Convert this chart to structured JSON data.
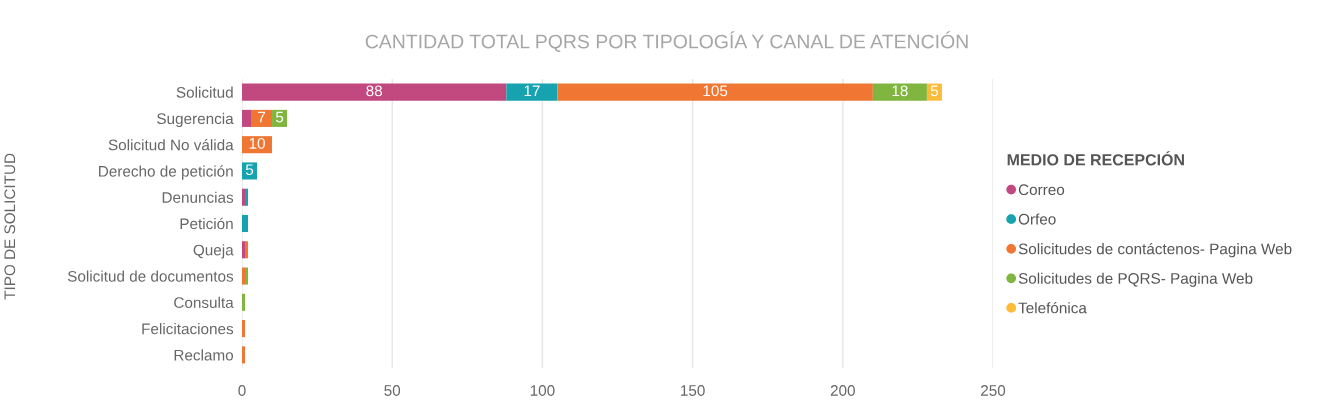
{
  "chart_data": {
    "type": "bar",
    "orientation": "horizontal",
    "stacked": true,
    "title": "CANTIDAD TOTAL PQRS POR TIPOLOGÍA Y CANAL DE ATENCIÓN",
    "ylabel": "TIPO DE SOLICITUD",
    "legend_title": "MEDIO DE RECEPCIÓN",
    "categories": [
      "Solicitud",
      "Sugerencia",
      "Solicitud No válida",
      "Derecho de petición",
      "Denuncias",
      "Petición",
      "Queja",
      "Solicitud de documentos",
      "Consulta",
      "Felicitaciones",
      "Reclamo"
    ],
    "series": [
      {
        "name": "Correo",
        "color": "#c2497f",
        "values": [
          88,
          3,
          null,
          null,
          1,
          null,
          1,
          null,
          null,
          null,
          null
        ],
        "value_labels": [
          "88",
          null,
          null,
          null,
          null,
          null,
          null,
          null,
          null,
          null,
          null
        ]
      },
      {
        "name": "Orfeo",
        "color": "#16a2ae",
        "values": [
          17,
          null,
          null,
          5,
          1,
          2,
          null,
          null,
          null,
          null,
          null
        ],
        "value_labels": [
          "17",
          null,
          null,
          "5",
          null,
          null,
          null,
          null,
          null,
          null,
          null
        ]
      },
      {
        "name": "Solicitudes de contáctenos- Pagina Web",
        "color": "#ef7733",
        "values": [
          105,
          7,
          10,
          null,
          null,
          null,
          1,
          1,
          null,
          1,
          1
        ],
        "value_labels": [
          "105",
          "7",
          "10",
          null,
          null,
          null,
          null,
          null,
          null,
          null,
          null
        ]
      },
      {
        "name": "Solicitudes de PQRS- Pagina Web",
        "color": "#80b640",
        "values": [
          18,
          5,
          null,
          null,
          null,
          null,
          null,
          1,
          1,
          null,
          null
        ],
        "value_labels": [
          "18",
          "5",
          null,
          null,
          null,
          null,
          null,
          null,
          null,
          null,
          null
        ]
      },
      {
        "name": "Telefónica",
        "color": "#fdbb3a",
        "values": [
          5,
          null,
          null,
          null,
          null,
          null,
          null,
          null,
          null,
          null,
          null
        ],
        "value_labels": [
          "5",
          null,
          null,
          null,
          null,
          null,
          null,
          null,
          null,
          null,
          null
        ]
      }
    ],
    "xlim": [
      0,
      250
    ],
    "xticks": [
      0,
      50,
      100,
      150,
      200,
      250
    ],
    "grid": "x",
    "legend": "right"
  }
}
